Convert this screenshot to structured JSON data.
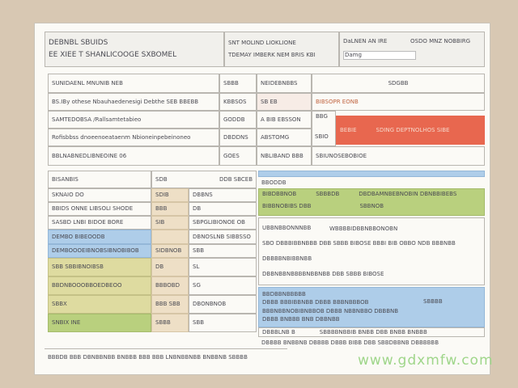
{
  "header": {
    "title": "DEBNBL SBUIDS",
    "subtitle": "EE XIEE T SHANLICOOGE SXBOMEL",
    "mid_line1": "SNT MOLIND LIOKLIONE",
    "mid_line2": "TDEMAY IMBERK NEM BRIS KBI",
    "right_line1": "DaLNEN AN IRE",
    "right_line2": "OSDO MNZ NOBBIRG",
    "right_field": "Damg"
  },
  "top_left_rows": [
    {
      "label": "SUNIDAENL MNUNIB NEB",
      "value": "SBBB"
    },
    {
      "label": "BS.IBy othese Nbauhaedenesigi Debthe SEB BBEBB",
      "value": "KBBSOS"
    },
    {
      "label": "SAMTEDOBSA  /Rallsamtetabieo",
      "value": "GODDB"
    },
    {
      "label": "Rofisbbss dnoeenoeataenm Nbioneinpebeinoneo",
      "value": "DBDDNS"
    },
    {
      "label": "BBLNABNEDLIBNEOINE 06",
      "value": "GOES"
    }
  ],
  "top_right": {
    "header_left": "NEIDEBNBBS",
    "header_right": "SDGBB",
    "rows": [
      {
        "left": "SB EB",
        "right": "BIBSOPR EONB"
      },
      {
        "left": "A BIB EBSSON",
        "right": "BBG"
      },
      {
        "left": "ABSTOMG",
        "right": "SBIO"
      },
      {
        "left": "NBLIBAND BBB",
        "right": "SBIUNOSEBOBIOE"
      }
    ],
    "alert_left": "BEBIE",
    "alert_text": "SDING DEPTNOLHOS SIBE"
  },
  "lower_left": {
    "header": "BISANBIS",
    "header_mid": "SDB",
    "header_right": "DDB SBCEB",
    "rows": [
      {
        "label": "SKNAIO DO",
        "code": "SDIB",
        "field": "DBBNS"
      },
      {
        "label": "BBIDS ONNE LIBSOLI SHODE",
        "code": "BBB",
        "field": "DB"
      },
      {
        "label": "SASBD LNBI BIDOE BORE",
        "code": "SIB",
        "field": "SBPGLIBIONOE OB"
      },
      {
        "label": "DEMBO BIBEOODB",
        "code": "",
        "field": "DBNOSLNB SIBBSSO"
      },
      {
        "label": "DEMBOOOEIBNOBSIBNOBIBOB",
        "code": "SIDBNOB",
        "field": "SBB"
      },
      {
        "label": "SBB  SBBIBNOIBSB",
        "code": "DB",
        "field": "SL"
      },
      {
        "label": "BBDNBOOOBBOEDBEOO",
        "code": "BBBOBD",
        "field": "SG"
      },
      {
        "label": "SBBX",
        "code": "BBB SBB",
        "field": "DBONBNOB"
      },
      {
        "label": "SNBIX INE",
        "code": "SBBB",
        "field": "SBB"
      }
    ]
  },
  "lower_right": {
    "top_field": "BBODDB",
    "green_rows": [
      {
        "a": "BIBDBBNOB",
        "b": "SBBBDB",
        "c": "DBDBAMNBEBNOBIN DBNBBIBEBS"
      },
      {
        "a": "BIBBNOBIBS DBB",
        "b": "",
        "c": "SBBNOB"
      }
    ],
    "white_rows": [
      "UBBNBBONNNBB",
      "WBBBBIDBBNBBONOBN",
      "SBO DBBBIBBNBBB DBB SBBB BIBOSE BBBI BIB OBBO NDB BBBNBB",
      "DBBBBNBIBBNBB",
      "DBBNBBNBBBBNBBNBB DBB SBBB BIBOSE"
    ],
    "blue_rows": [
      "BBDBBNBBBBB",
      "DBBB BBBIBBNBB DBBB BBBNBBBOB",
      "SBBBB",
      "BBBNBBNOBIBNBBOB DBBB NBBNBBO DBBBNB",
      "DBBB BNBBB BNB DBBNBB"
    ],
    "bottom_rows": [
      "DBBBLNB B",
      "SBBBBNBBIB BNBB DBB BNBB BNBBB",
      "DBBBB BNBBNB DBBBB DBBB BIBB DBB SBBDBBNB DBBBBBB"
    ]
  },
  "footer": "BBBDB BBB DBNBBNBB  BNBBB BBB BBB LNBNBBNBB BNBBNB SBBBB",
  "watermark": "www.gdxmfw.com",
  "colors": {
    "red": "#e8674f",
    "green": "#b9d07e",
    "blue": "#aecde9",
    "tan": "#eedfc6",
    "olive": "#dedba0"
  }
}
